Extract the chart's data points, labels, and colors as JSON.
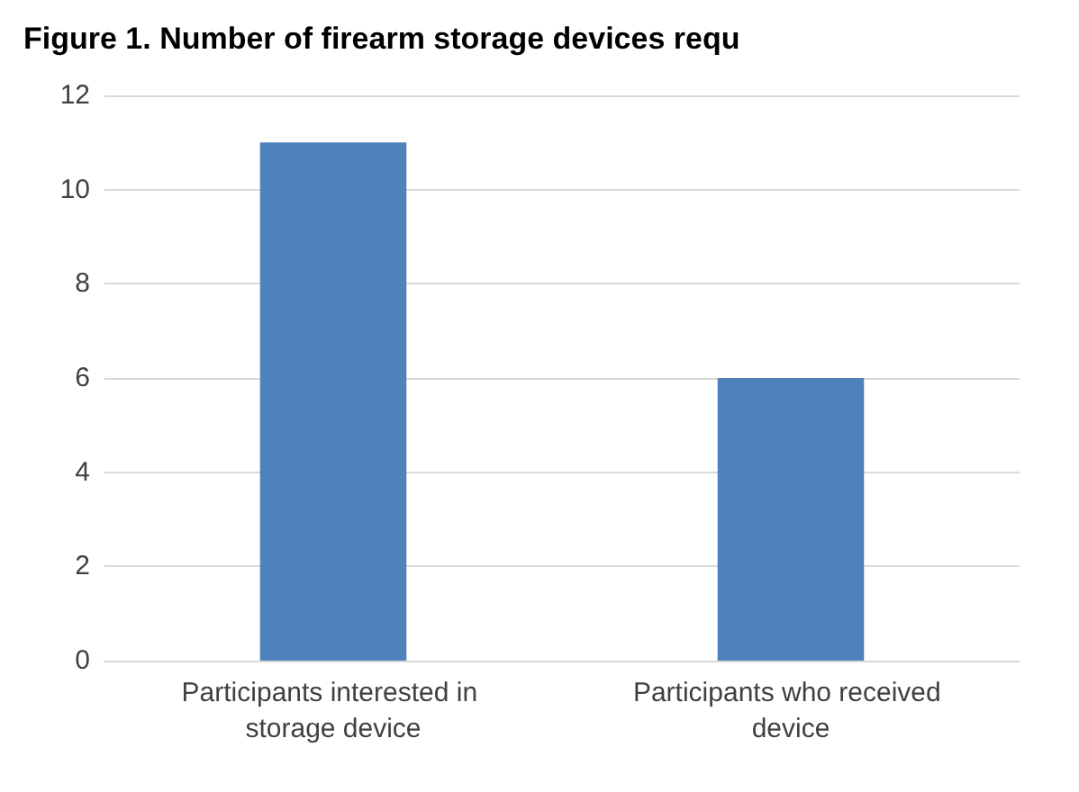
{
  "chart_data": {
    "type": "bar",
    "title": "Figure 1. Number of firearm storage devices requ",
    "categories": [
      "Participants interested in storage device",
      "Participants who received device"
    ],
    "values": [
      11,
      6
    ],
    "color": "#4f81bd",
    "ylim": [
      0,
      12
    ],
    "yticks": [
      0,
      2,
      4,
      6,
      8,
      10,
      12
    ],
    "grid": "y"
  }
}
